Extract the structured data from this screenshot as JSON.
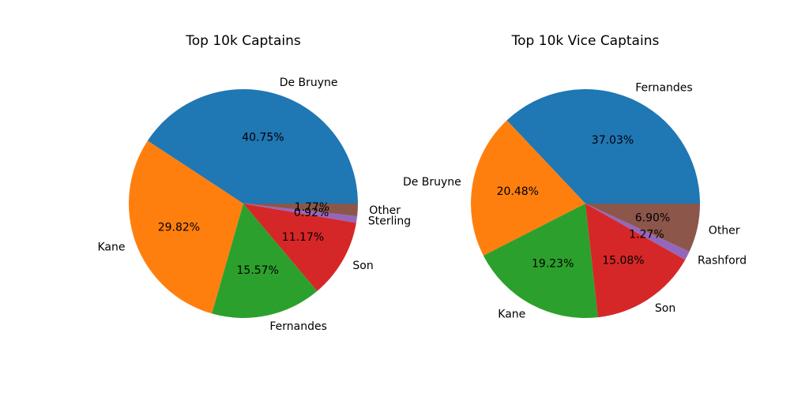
{
  "chart_data": [
    {
      "type": "pie",
      "title": "Top 10k Captains",
      "start_angle_deg": 0,
      "direction": "counterclockwise",
      "slices": [
        {
          "label": "De Bruyne",
          "value": 40.75,
          "pct_label": "40.75%",
          "color": "#1f77b4"
        },
        {
          "label": "Kane",
          "value": 29.82,
          "pct_label": "29.82%",
          "color": "#ff7f0e"
        },
        {
          "label": "Fernandes",
          "value": 15.57,
          "pct_label": "15.57%",
          "color": "#2ca02c"
        },
        {
          "label": "Son",
          "value": 11.17,
          "pct_label": "11.17%",
          "color": "#d62728"
        },
        {
          "label": "Sterling",
          "value": 0.92,
          "pct_label": "0.92%",
          "color": "#9467bd"
        },
        {
          "label": "Other",
          "value": 1.77,
          "pct_label": "1.77%",
          "color": "#8c564b"
        }
      ]
    },
    {
      "type": "pie",
      "title": "Top 10k Vice Captains",
      "start_angle_deg": 0,
      "direction": "counterclockwise",
      "slices": [
        {
          "label": "Fernandes",
          "value": 37.03,
          "pct_label": "37.03%",
          "color": "#1f77b4"
        },
        {
          "label": "De Bruyne",
          "value": 20.48,
          "pct_label": "20.48%",
          "color": "#ff7f0e"
        },
        {
          "label": "Kane",
          "value": 19.23,
          "pct_label": "19.23%",
          "color": "#2ca02c"
        },
        {
          "label": "Son",
          "value": 15.08,
          "pct_label": "15.08%",
          "color": "#d62728"
        },
        {
          "label": "Rashford",
          "value": 1.27,
          "pct_label": "1.27%",
          "color": "#9467bd"
        },
        {
          "label": "Other",
          "value": 6.9,
          "pct_label": "6.90%",
          "color": "#8c564b"
        }
      ]
    }
  ]
}
